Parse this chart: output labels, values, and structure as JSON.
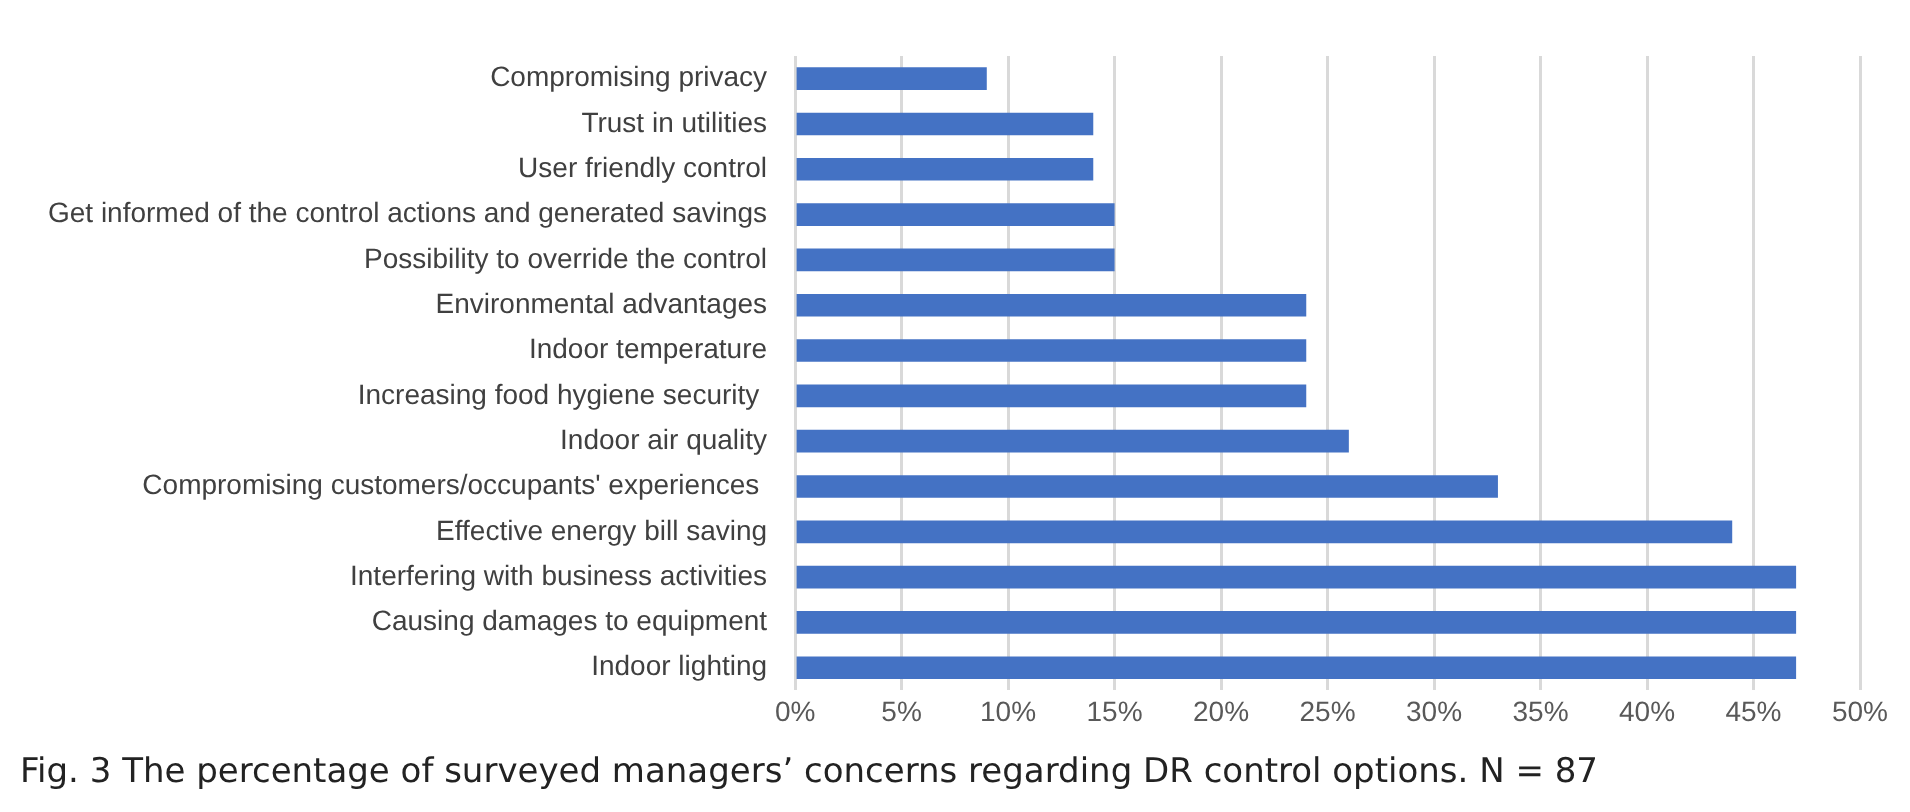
{
  "chart_data": {
    "type": "bar",
    "orientation": "horizontal",
    "categories": [
      "Compromising privacy",
      "Trust in utilities",
      "User friendly control",
      "Get informed of the control actions and generated savings",
      "Possibility to override the control",
      "Environmental advantages",
      "Indoor temperature",
      "Increasing food hygiene security ",
      "Indoor air quality",
      "Compromising customers/occupants' experiences ",
      "Effective energy bill saving",
      "Interfering with business activities",
      "Causing damages to equipment",
      "Indoor lighting"
    ],
    "values": [
      9,
      14,
      14,
      15,
      15,
      24,
      24,
      24,
      26,
      33,
      44,
      47,
      47,
      47
    ],
    "color": "#4472c4",
    "xlim": [
      0,
      50
    ],
    "xticks": [
      {
        "value": 0,
        "label": "0%"
      },
      {
        "value": 5,
        "label": "5%"
      },
      {
        "value": 10,
        "label": "10%"
      },
      {
        "value": 15,
        "label": "15%"
      },
      {
        "value": 20,
        "label": "20%"
      },
      {
        "value": 25,
        "label": "25%"
      },
      {
        "value": 30,
        "label": "30%"
      },
      {
        "value": 35,
        "label": "35%"
      },
      {
        "value": 40,
        "label": "40%"
      },
      {
        "value": 45,
        "label": "45%"
      },
      {
        "value": 50,
        "label": "50%"
      }
    ],
    "grid": "x",
    "legend": false,
    "annotations": [
      "Fig. 3 The percentage of surveyed managers’ concerns regarding DR control options. N = 87"
    ]
  }
}
